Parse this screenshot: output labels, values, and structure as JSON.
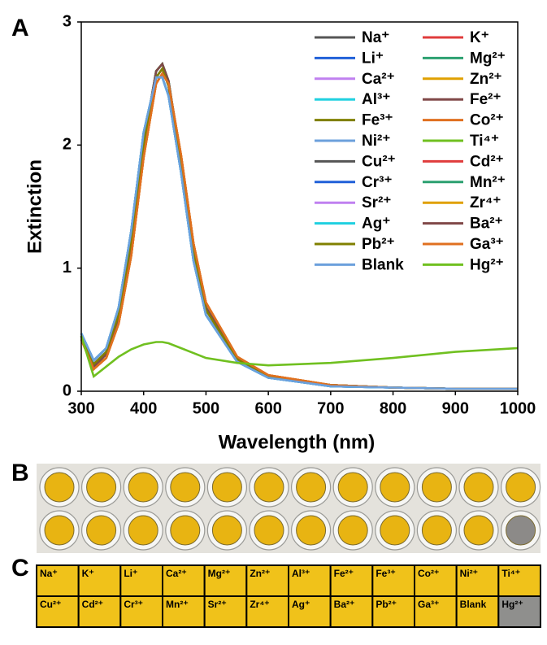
{
  "panel_labels": [
    "A",
    "B",
    "C"
  ],
  "chart_data": {
    "type": "line",
    "xlabel": "Wavelength (nm)",
    "ylabel": "Extinction",
    "xlim": [
      300,
      1000
    ],
    "xticks": [
      300,
      400,
      500,
      600,
      700,
      800,
      900,
      1000
    ],
    "ylim": [
      0,
      3
    ],
    "yticks": [
      0,
      1,
      2,
      3
    ],
    "grid": false,
    "legend": "upper right",
    "x": [
      300,
      320,
      340,
      360,
      380,
      400,
      420,
      430,
      440,
      460,
      480,
      500,
      550,
      600,
      700,
      800,
      900,
      1000
    ],
    "series": [
      {
        "name": "Na⁺",
        "color": "#555555",
        "values": [
          0.45,
          0.22,
          0.32,
          0.62,
          1.22,
          2.0,
          2.55,
          2.62,
          2.48,
          1.85,
          1.12,
          0.66,
          0.26,
          0.12,
          0.05,
          0.03,
          0.02,
          0.02
        ]
      },
      {
        "name": "K⁺",
        "color": "#e03c3c",
        "values": [
          0.42,
          0.18,
          0.27,
          0.55,
          1.1,
          1.9,
          2.5,
          2.58,
          2.5,
          1.92,
          1.2,
          0.72,
          0.28,
          0.13,
          0.05,
          0.03,
          0.02,
          0.02
        ]
      },
      {
        "name": "Li⁺",
        "color": "#2060d8",
        "values": [
          0.47,
          0.25,
          0.35,
          0.68,
          1.3,
          2.1,
          2.55,
          2.55,
          2.4,
          1.78,
          1.06,
          0.62,
          0.24,
          0.11,
          0.04,
          0.03,
          0.02,
          0.02
        ]
      },
      {
        "name": "Mg²⁺",
        "color": "#2ca070",
        "values": [
          0.44,
          0.2,
          0.3,
          0.6,
          1.2,
          2.02,
          2.6,
          2.66,
          2.52,
          1.88,
          1.15,
          0.68,
          0.27,
          0.12,
          0.05,
          0.03,
          0.02,
          0.02
        ]
      },
      {
        "name": "Ca²⁺",
        "color": "#c080f0",
        "values": [
          0.45,
          0.22,
          0.32,
          0.62,
          1.22,
          2.0,
          2.55,
          2.62,
          2.48,
          1.85,
          1.12,
          0.66,
          0.26,
          0.12,
          0.05,
          0.03,
          0.02,
          0.02
        ]
      },
      {
        "name": "Zn²⁺",
        "color": "#e0a000",
        "values": [
          0.42,
          0.18,
          0.27,
          0.55,
          1.1,
          1.9,
          2.5,
          2.58,
          2.5,
          1.92,
          1.2,
          0.72,
          0.28,
          0.13,
          0.05,
          0.03,
          0.02,
          0.02
        ]
      },
      {
        "name": "Al³⁺",
        "color": "#20d0e0",
        "values": [
          0.47,
          0.25,
          0.35,
          0.68,
          1.3,
          2.1,
          2.55,
          2.55,
          2.4,
          1.78,
          1.06,
          0.62,
          0.24,
          0.11,
          0.04,
          0.03,
          0.02,
          0.02
        ]
      },
      {
        "name": "Fe²⁺",
        "color": "#804848",
        "values": [
          0.44,
          0.2,
          0.3,
          0.6,
          1.2,
          2.02,
          2.6,
          2.66,
          2.52,
          1.88,
          1.15,
          0.68,
          0.27,
          0.12,
          0.05,
          0.03,
          0.02,
          0.02
        ]
      },
      {
        "name": "Fe³⁺",
        "color": "#808000",
        "values": [
          0.45,
          0.22,
          0.32,
          0.62,
          1.22,
          2.0,
          2.55,
          2.62,
          2.48,
          1.85,
          1.12,
          0.66,
          0.26,
          0.12,
          0.05,
          0.03,
          0.02,
          0.02
        ]
      },
      {
        "name": "Co²⁺",
        "color": "#e07020",
        "values": [
          0.42,
          0.18,
          0.27,
          0.55,
          1.1,
          1.9,
          2.5,
          2.58,
          2.5,
          1.92,
          1.2,
          0.72,
          0.28,
          0.13,
          0.05,
          0.03,
          0.02,
          0.02
        ]
      },
      {
        "name": "Ni²⁺",
        "color": "#6ca0dc",
        "values": [
          0.47,
          0.25,
          0.35,
          0.68,
          1.3,
          2.1,
          2.55,
          2.55,
          2.4,
          1.78,
          1.06,
          0.62,
          0.24,
          0.11,
          0.04,
          0.03,
          0.02,
          0.02
        ]
      },
      {
        "name": "Ti⁴⁺",
        "color": "#70c020",
        "values": [
          0.44,
          0.2,
          0.3,
          0.6,
          1.2,
          2.02,
          2.6,
          2.66,
          2.52,
          1.88,
          1.15,
          0.68,
          0.27,
          0.12,
          0.05,
          0.03,
          0.02,
          0.02
        ]
      },
      {
        "name": "Cu²⁺",
        "color": "#555555",
        "values": [
          0.45,
          0.22,
          0.32,
          0.62,
          1.22,
          2.0,
          2.55,
          2.62,
          2.48,
          1.85,
          1.12,
          0.66,
          0.26,
          0.12,
          0.05,
          0.03,
          0.02,
          0.02
        ]
      },
      {
        "name": "Cd²⁺",
        "color": "#e03c3c",
        "values": [
          0.42,
          0.18,
          0.27,
          0.55,
          1.1,
          1.9,
          2.5,
          2.58,
          2.5,
          1.92,
          1.2,
          0.72,
          0.28,
          0.13,
          0.05,
          0.03,
          0.02,
          0.02
        ]
      },
      {
        "name": "Cr³⁺",
        "color": "#2060d8",
        "values": [
          0.47,
          0.25,
          0.35,
          0.68,
          1.3,
          2.1,
          2.55,
          2.55,
          2.4,
          1.78,
          1.06,
          0.62,
          0.24,
          0.11,
          0.04,
          0.03,
          0.02,
          0.02
        ]
      },
      {
        "name": "Mn²⁺",
        "color": "#2ca070",
        "values": [
          0.44,
          0.2,
          0.3,
          0.6,
          1.2,
          2.02,
          2.6,
          2.66,
          2.52,
          1.88,
          1.15,
          0.68,
          0.27,
          0.12,
          0.05,
          0.03,
          0.02,
          0.02
        ]
      },
      {
        "name": "Sr²⁺",
        "color": "#c080f0",
        "values": [
          0.45,
          0.22,
          0.32,
          0.62,
          1.22,
          2.0,
          2.55,
          2.62,
          2.48,
          1.85,
          1.12,
          0.66,
          0.26,
          0.12,
          0.05,
          0.03,
          0.02,
          0.02
        ]
      },
      {
        "name": "Zr⁴⁺",
        "color": "#e0a000",
        "values": [
          0.42,
          0.18,
          0.27,
          0.55,
          1.1,
          1.9,
          2.5,
          2.58,
          2.5,
          1.92,
          1.2,
          0.72,
          0.28,
          0.13,
          0.05,
          0.03,
          0.02,
          0.02
        ]
      },
      {
        "name": "Ag⁺",
        "color": "#20d0e0",
        "values": [
          0.47,
          0.25,
          0.35,
          0.68,
          1.3,
          2.1,
          2.55,
          2.55,
          2.4,
          1.78,
          1.06,
          0.62,
          0.24,
          0.11,
          0.04,
          0.03,
          0.02,
          0.02
        ]
      },
      {
        "name": "Ba²⁺",
        "color": "#804848",
        "values": [
          0.44,
          0.2,
          0.3,
          0.6,
          1.2,
          2.02,
          2.6,
          2.66,
          2.52,
          1.88,
          1.15,
          0.68,
          0.27,
          0.12,
          0.05,
          0.03,
          0.02,
          0.02
        ]
      },
      {
        "name": "Pb²⁺",
        "color": "#808000",
        "values": [
          0.45,
          0.22,
          0.32,
          0.62,
          1.22,
          2.0,
          2.55,
          2.62,
          2.48,
          1.85,
          1.12,
          0.66,
          0.26,
          0.12,
          0.05,
          0.03,
          0.02,
          0.02
        ]
      },
      {
        "name": "Ga³⁺",
        "color": "#e07020",
        "values": [
          0.42,
          0.18,
          0.27,
          0.55,
          1.1,
          1.9,
          2.5,
          2.58,
          2.5,
          1.92,
          1.2,
          0.72,
          0.28,
          0.13,
          0.05,
          0.03,
          0.02,
          0.02
        ]
      },
      {
        "name": "Blank",
        "color": "#6ca0dc",
        "values": [
          0.47,
          0.25,
          0.35,
          0.68,
          1.3,
          2.1,
          2.55,
          2.55,
          2.4,
          1.78,
          1.06,
          0.62,
          0.24,
          0.11,
          0.04,
          0.03,
          0.02,
          0.02
        ]
      },
      {
        "name": "Hg²⁺",
        "color": "#70c020",
        "values": [
          0.45,
          0.12,
          0.2,
          0.28,
          0.34,
          0.38,
          0.4,
          0.4,
          0.39,
          0.35,
          0.31,
          0.27,
          0.23,
          0.21,
          0.23,
          0.27,
          0.32,
          0.35
        ]
      }
    ]
  },
  "panel_c": {
    "rows": [
      [
        "Na⁺",
        "K⁺",
        "Li⁺",
        "Ca²⁺",
        "Mg²⁺",
        "Zn²⁺",
        "Al³⁺",
        "Fe²⁺",
        "Fe³⁺",
        "Co²⁺",
        "Ni²⁺",
        "Ti⁴⁺"
      ],
      [
        "Cu²⁺",
        "Cd²⁺",
        "Cr³⁺",
        "Mn²⁺",
        "Sr²⁺",
        "Zr⁴⁺",
        "Ag⁺",
        "Ba²⁺",
        "Pb²⁺",
        "Ga³⁺",
        "Blank",
        "Hg²⁺"
      ]
    ]
  }
}
